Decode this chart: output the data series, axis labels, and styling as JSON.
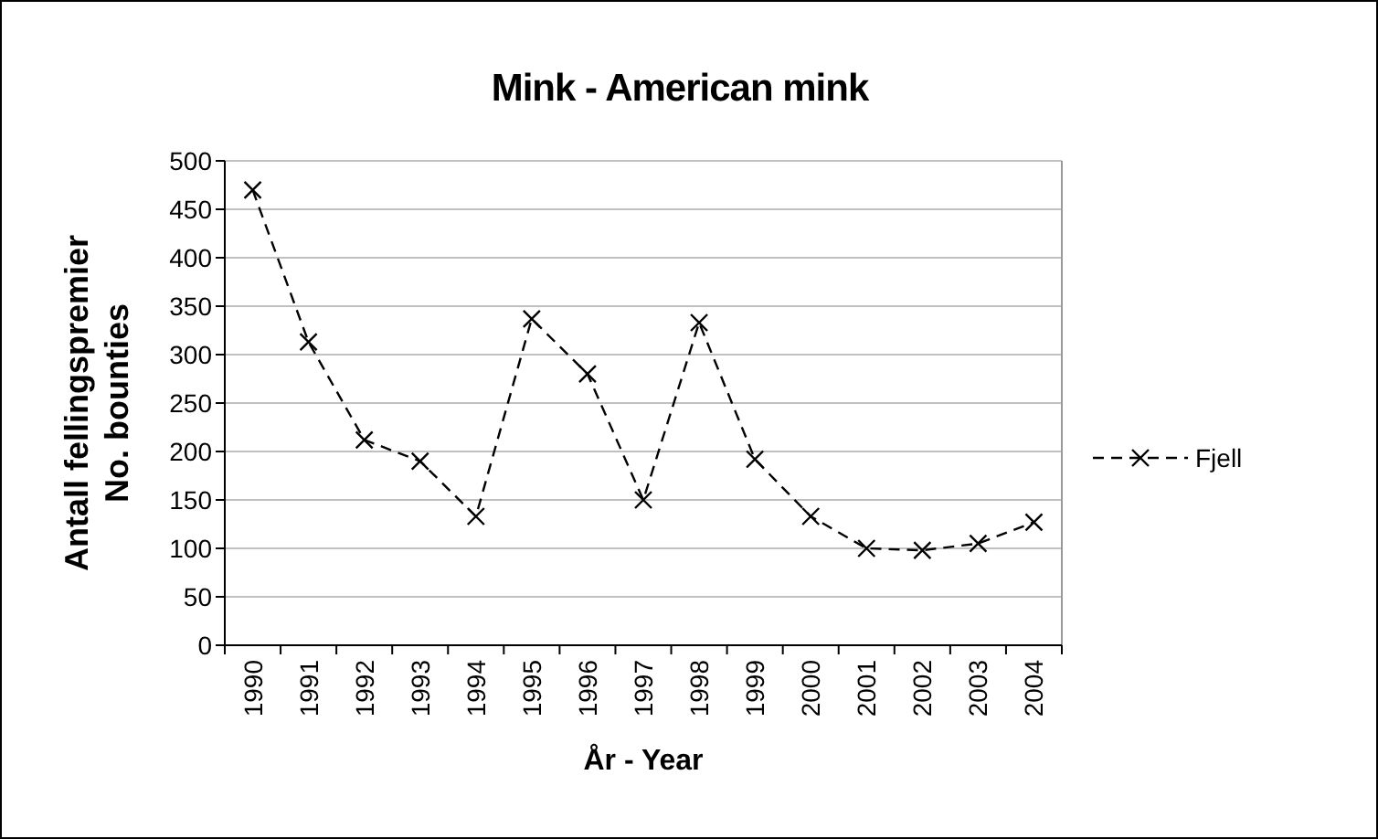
{
  "chart_data": {
    "type": "line",
    "title": "Mink - American mink",
    "xlabel": "År - Year",
    "ylabel": "Antall fellingspremier\nNo. bounties",
    "categories": [
      "1990",
      "1991",
      "1992",
      "1993",
      "1994",
      "1995",
      "1996",
      "1997",
      "1998",
      "1999",
      "2000",
      "2001",
      "2002",
      "2003",
      "2004"
    ],
    "series": [
      {
        "name": "Fjell",
        "color": "#000000",
        "values": [
          470,
          313,
          212,
          190,
          133,
          337,
          280,
          150,
          333,
          192,
          133,
          100,
          98,
          105,
          127
        ]
      }
    ],
    "ylim": [
      0,
      500
    ],
    "yticks": [
      0,
      50,
      100,
      150,
      200,
      250,
      300,
      350,
      400,
      450,
      500
    ],
    "grid": "y",
    "legend": "right",
    "marker": "cross",
    "line_style": "dashed"
  }
}
